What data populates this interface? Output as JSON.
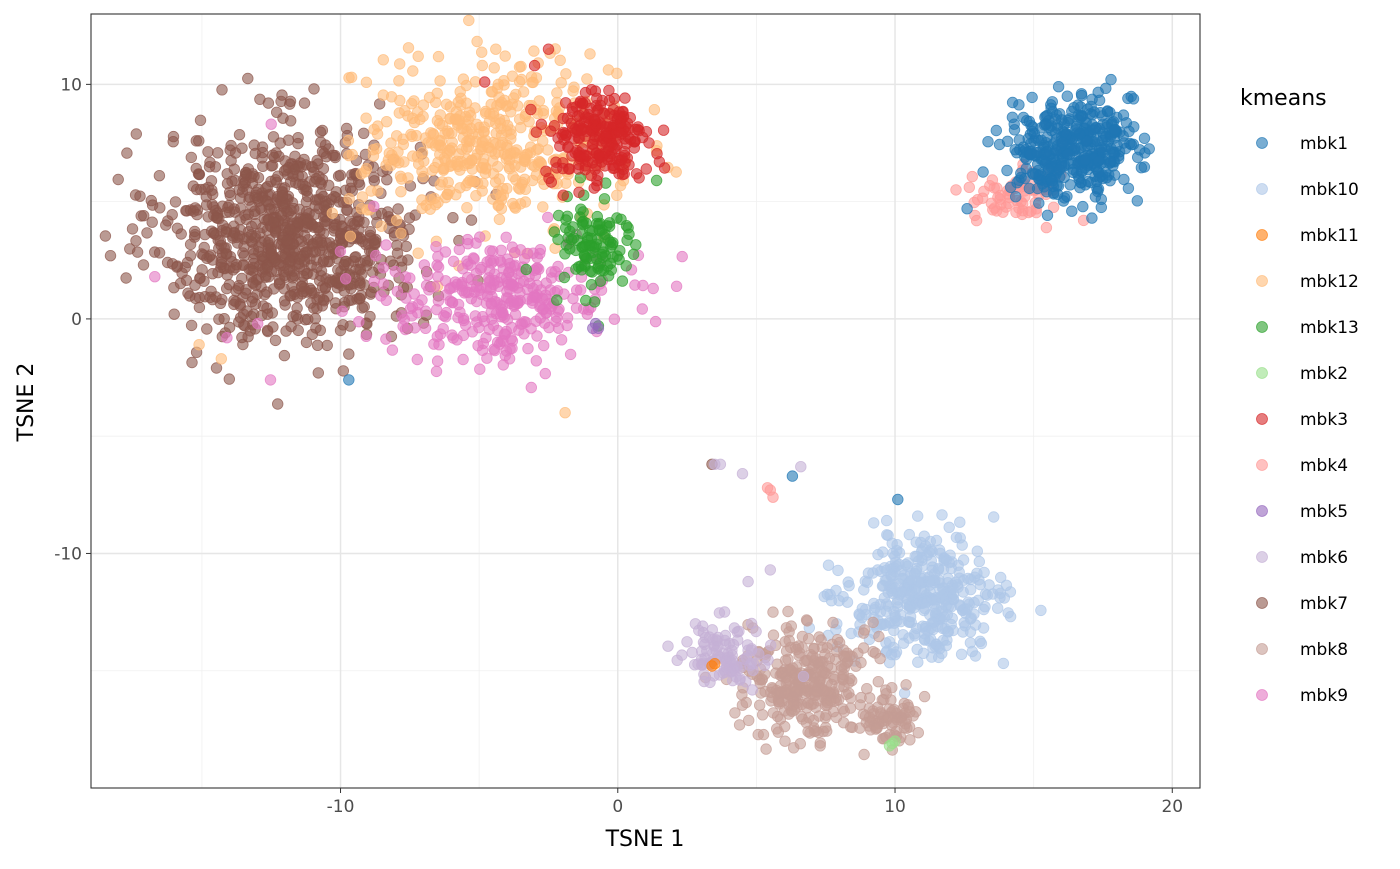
{
  "chart_data": {
    "type": "scatter",
    "xlabel": "TSNE 1",
    "ylabel": "TSNE 2",
    "xlim": [
      -19,
      21
    ],
    "ylim": [
      -20,
      13
    ],
    "x_ticks": [
      -10,
      0,
      10,
      20
    ],
    "y_ticks": [
      -10,
      0,
      10
    ],
    "x_tick_labels": [
      "-10",
      "0",
      "10",
      "20"
    ],
    "y_tick_labels": [
      "-10",
      "0",
      "10"
    ],
    "grid": true,
    "legend": {
      "title": "kmeans",
      "position": "right"
    },
    "point_alpha": 0.6,
    "series": [
      {
        "name": "mbk1",
        "color": "#1f77b4",
        "clusters": [
          {
            "cx": 16.4,
            "cy": 7.2,
            "sx": 1.1,
            "sy": 1.0,
            "n": 400
          }
        ],
        "points": [
          [
            12.6,
            4.7
          ],
          [
            -9.7,
            -2.6
          ],
          [
            6.3,
            -6.7
          ],
          [
            10.1,
            -7.7
          ],
          [
            15.9,
            9.9
          ],
          [
            18.4,
            9.4
          ],
          [
            19.0,
            7.7
          ],
          [
            14.3,
            8.3
          ],
          [
            17.1,
            4.3
          ]
        ]
      },
      {
        "name": "mbk10",
        "color": "#aec7e8",
        "clusters": [
          {
            "cx": 11.0,
            "cy": -11.9,
            "sx": 1.35,
            "sy": 1.25,
            "n": 380
          }
        ],
        "points": [
          [
            9.7,
            -8.6
          ],
          [
            7.6,
            -10.5
          ],
          [
            13.8,
            -11.7
          ],
          [
            12.4,
            -14.3
          ],
          [
            7.9,
            -13.0
          ]
        ]
      },
      {
        "name": "mbk11",
        "color": "#ff7f0e",
        "clusters": [],
        "points": [
          [
            3.4,
            -14.8
          ],
          [
            3.5,
            -14.7
          ]
        ]
      },
      {
        "name": "mbk12",
        "color": "#ffbb78",
        "clusters": [
          {
            "cx": -4.6,
            "cy": 7.4,
            "sx": 2.3,
            "sy": 1.7,
            "n": 460
          }
        ],
        "points": [
          [
            -4.4,
            11.5
          ],
          [
            -1.0,
            11.3
          ],
          [
            -9.6,
            10.3
          ],
          [
            -14.3,
            -1.7
          ],
          [
            -15.1,
            -1.1
          ],
          [
            -1.9,
            -4.0
          ],
          [
            -6.5,
            1.4
          ],
          [
            -7.2,
            2.8
          ]
        ]
      },
      {
        "name": "mbk13",
        "color": "#2ca02c",
        "clusters": [
          {
            "cx": -0.9,
            "cy": 3.2,
            "sx": 0.75,
            "sy": 1.1,
            "n": 110
          }
        ],
        "points": [
          [
            1.4,
            5.9
          ],
          [
            -0.7,
            -0.3
          ],
          [
            -2.2,
            0.8
          ]
        ]
      },
      {
        "name": "mbk2",
        "color": "#98df8a",
        "clusters": [],
        "points": [
          [
            9.9,
            -18.1
          ],
          [
            10.0,
            -18.0
          ],
          [
            9.8,
            -18.2
          ]
        ]
      },
      {
        "name": "mbk3",
        "color": "#d62728",
        "clusters": [
          {
            "cx": -0.7,
            "cy": 7.6,
            "sx": 0.9,
            "sy": 1.0,
            "n": 230
          }
        ],
        "points": [
          [
            -2.5,
            11.5
          ],
          [
            -4.8,
            10.1
          ],
          [
            1.5,
            6.7
          ],
          [
            -1.4,
            5.4
          ],
          [
            -3.0,
            10.8
          ]
        ]
      },
      {
        "name": "mbk4",
        "color": "#ff9896",
        "clusters": [
          {
            "cx": 14.4,
            "cy": 5.3,
            "sx": 0.75,
            "sy": 0.6,
            "n": 70
          }
        ],
        "points": [
          [
            5.5,
            -7.3
          ],
          [
            5.4,
            -7.2
          ],
          [
            5.6,
            -7.6
          ],
          [
            12.2,
            5.5
          ],
          [
            16.8,
            4.2
          ]
        ]
      },
      {
        "name": "mbk5",
        "color": "#9467bd",
        "clusters": [],
        "points": [
          [
            -0.9,
            -0.4
          ],
          [
            -0.8,
            -0.2
          ],
          [
            -0.7,
            -0.4
          ]
        ]
      },
      {
        "name": "mbk6",
        "color": "#c5b0d5",
        "clusters": [
          {
            "cx": 3.9,
            "cy": -14.3,
            "sx": 0.75,
            "sy": 0.7,
            "n": 100
          }
        ],
        "points": [
          [
            3.5,
            -6.2
          ],
          [
            3.7,
            -6.2
          ],
          [
            4.5,
            -6.6
          ],
          [
            4.7,
            -11.2
          ],
          [
            5.5,
            -10.7
          ],
          [
            6.6,
            -6.3
          ],
          [
            2.8,
            -13.0
          ],
          [
            4.4,
            -15.4
          ]
        ]
      },
      {
        "name": "mbk7",
        "color": "#8c564b",
        "clusters": [
          {
            "cx": -11.8,
            "cy": 3.6,
            "sx": 2.3,
            "sy": 2.2,
            "n": 900
          }
        ],
        "points": [
          [
            -17.1,
            4.4
          ],
          [
            -11.3,
            9.2
          ],
          [
            -12.6,
            9.2
          ],
          [
            -10.8,
            -2.3
          ],
          [
            -16.0,
            0.2
          ],
          [
            -9.7,
            -1.5
          ],
          [
            -8.1,
            6.8
          ],
          [
            3.4,
            -6.2
          ]
        ]
      },
      {
        "name": "mbk8",
        "color": "#c49c94",
        "clusters": [
          {
            "cx": 6.8,
            "cy": -15.4,
            "sx": 1.1,
            "sy": 1.2,
            "n": 320
          },
          {
            "cx": 9.8,
            "cy": -17.1,
            "sx": 0.55,
            "sy": 0.5,
            "n": 70
          }
        ],
        "points": [
          [
            7.3,
            -18.2
          ],
          [
            8.4,
            -17.4
          ],
          [
            10.4,
            -15.6
          ],
          [
            5.6,
            -12.5
          ],
          [
            8.0,
            -13.8
          ]
        ]
      },
      {
        "name": "mbk9",
        "color": "#e377c2",
        "clusters": [
          {
            "cx": -4.3,
            "cy": 0.9,
            "sx": 2.1,
            "sy": 1.25,
            "n": 330
          }
        ],
        "points": [
          [
            -12.5,
            8.3
          ],
          [
            -16.7,
            1.8
          ],
          [
            -14.1,
            -0.8
          ],
          [
            -1.5,
            3.6
          ],
          [
            -3.9,
            -1.7
          ],
          [
            -6.5,
            -1.8
          ],
          [
            -8.8,
            4.8
          ],
          [
            -1.1,
            0.2
          ]
        ]
      }
    ]
  }
}
